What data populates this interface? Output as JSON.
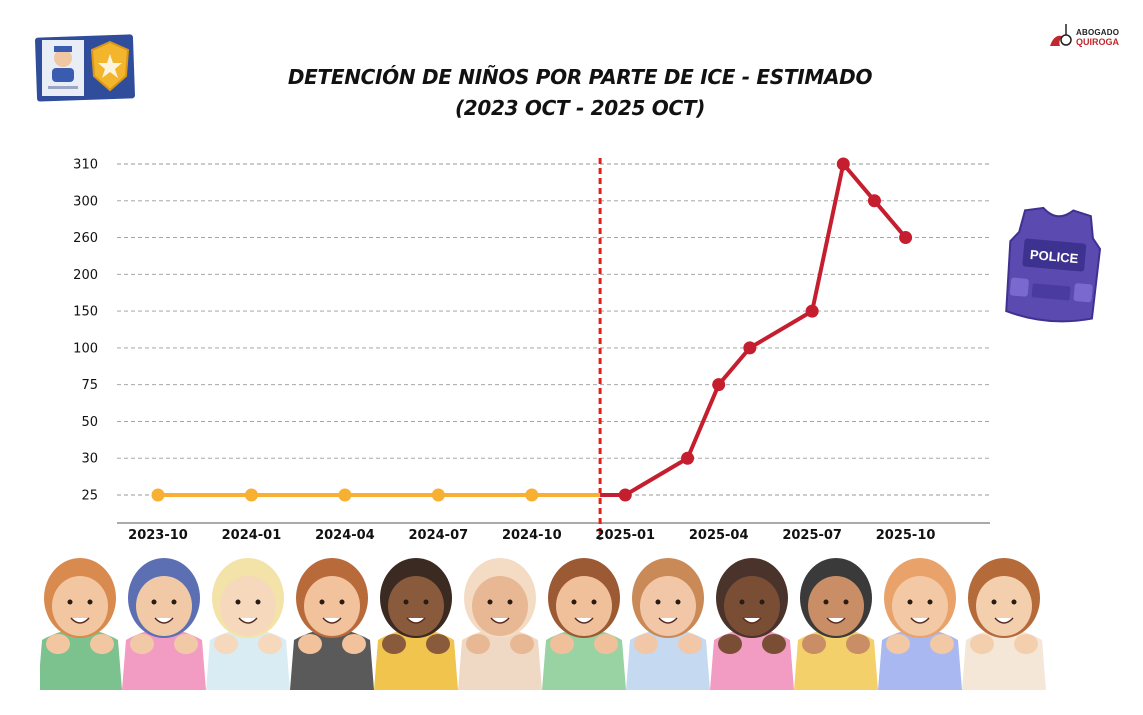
{
  "logo": {
    "line1": "ABOGADO",
    "line2": "QUIROGA"
  },
  "vest_label": "POLICE",
  "colors": {
    "before": "#F7B032",
    "after": "#C41E2F",
    "divider": "#E32018",
    "grid": "#9a9a9a"
  },
  "icons": [
    "id-badge-icon",
    "police-vest-icon",
    "children-illustration"
  ],
  "chart_data": {
    "type": "line",
    "title": [
      "DETENCIÓN DE NIÑOS POR PARTE DE ICE - ESTIMADO",
      "(2023 OCT - 2025 OCT)"
    ],
    "xlabel": "",
    "ylabel": "",
    "y_scale": "categorical (evenly spaced ticks)",
    "y_ticks": [
      25,
      30,
      50,
      75,
      100,
      150,
      200,
      260,
      300,
      310
    ],
    "x_ticks": [
      "2023-10",
      "2024-01",
      "2024-04",
      "2024-07",
      "2024-10",
      "2025-01",
      "2025-04",
      "2025-07",
      "2025-10"
    ],
    "divider_at": "2024-12",
    "grid": "horizontal dashed",
    "series": [
      {
        "color": "#F7B032",
        "points": [
          {
            "x": "2023-10",
            "y": 25
          },
          {
            "x": "2024-01",
            "y": 25
          },
          {
            "x": "2024-04",
            "y": 25
          },
          {
            "x": "2024-07",
            "y": 25
          },
          {
            "x": "2024-10",
            "y": 25
          }
        ]
      },
      {
        "color": "#C41E2F",
        "points": [
          {
            "x": "2025-01",
            "y": 25
          },
          {
            "x": "2025-03",
            "y": 30
          },
          {
            "x": "2025-04",
            "y": 75
          },
          {
            "x": "2025-05",
            "y": 100
          },
          {
            "x": "2025-07",
            "y": 150
          },
          {
            "x": "2025-08",
            "y": 310
          },
          {
            "x": "2025-09",
            "y": 300
          },
          {
            "x": "2025-10",
            "y": 260
          }
        ]
      }
    ]
  }
}
